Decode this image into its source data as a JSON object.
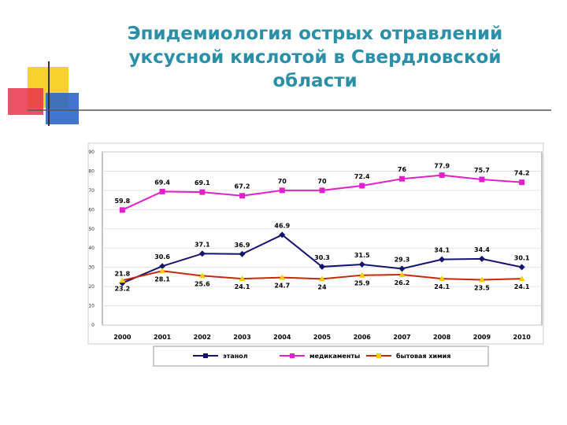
{
  "chart_data": {
    "type": "line",
    "title": "Эпидемиология острых отравлений уксусной кислотой в Свердловской области",
    "categories": [
      "2000",
      "2001",
      "2002",
      "2003",
      "2004",
      "2005",
      "2006",
      "2007",
      "2008",
      "2009",
      "2010"
    ],
    "series": [
      {
        "name": "этанол",
        "color": "#14146e",
        "marker_color": "#14146e",
        "values": [
          21.8,
          30.6,
          37.1,
          36.9,
          46.9,
          30.3,
          31.5,
          29.3,
          34.1,
          34.4,
          30.1
        ]
      },
      {
        "name": "медикаменты",
        "color": "#e020c8",
        "marker_color": "#e020c8",
        "values": [
          59.8,
          69.4,
          69.1,
          67.2,
          70,
          70,
          72.4,
          76,
          77.9,
          75.7,
          74.2
        ]
      },
      {
        "name": "бытовая химия",
        "color": "#c8280a",
        "marker_color": "#f0d000",
        "values": [
          23.2,
          28.1,
          25.6,
          24.1,
          24.7,
          24,
          25.9,
          26.2,
          24.1,
          23.5,
          24.1
        ]
      }
    ],
    "ylim": [
      0,
      90
    ],
    "yticks": [
      0,
      10,
      20,
      30,
      40,
      50,
      60,
      70,
      80,
      90
    ],
    "grid": true
  }
}
